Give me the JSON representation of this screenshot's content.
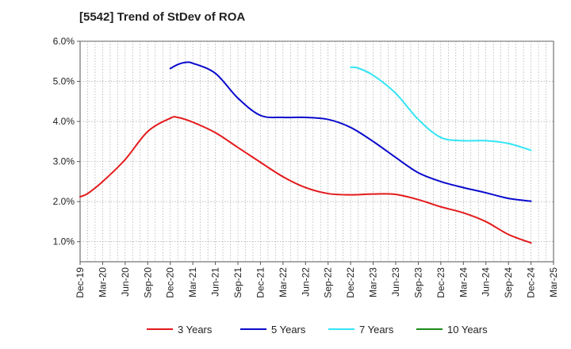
{
  "chart_data": {
    "type": "line",
    "title": "[5542]  Trend of StDev of ROA",
    "y_unit": "%",
    "ylim": [
      0.5,
      6.0
    ],
    "y_ticks": [
      1.0,
      2.0,
      3.0,
      4.0,
      5.0,
      6.0
    ],
    "y_tick_labels": [
      "1.0%",
      "2.0%",
      "3.0%",
      "4.0%",
      "5.0%",
      "6.0%"
    ],
    "x_ticks": [
      "Dec-19",
      "Mar-20",
      "Jun-20",
      "Sep-20",
      "Dec-20",
      "Mar-21",
      "Jun-21",
      "Sep-21",
      "Dec-21",
      "Mar-22",
      "Jun-22",
      "Sep-22",
      "Dec-22",
      "Mar-23",
      "Jun-23",
      "Sep-23",
      "Dec-23",
      "Mar-24",
      "Jun-24",
      "Sep-24",
      "Dec-24",
      "Mar-25"
    ],
    "grid": true,
    "legend_position": "bottom",
    "series": [
      {
        "name": "3 Years",
        "color": "#e41a1c",
        "points": [
          [
            "Dec-19",
            2.12
          ],
          [
            "Jan-20",
            2.2
          ],
          [
            "Mar-20",
            2.5
          ],
          [
            "Jun-20",
            3.05
          ],
          [
            "Sep-20",
            3.75
          ],
          [
            "Dec-20",
            4.08
          ],
          [
            "Jan-21",
            4.1
          ],
          [
            "Mar-21",
            3.98
          ],
          [
            "Jun-21",
            3.72
          ],
          [
            "Sep-21",
            3.35
          ],
          [
            "Dec-21",
            2.98
          ],
          [
            "Mar-22",
            2.62
          ],
          [
            "Jun-22",
            2.35
          ],
          [
            "Sep-22",
            2.2
          ],
          [
            "Dec-22",
            2.17
          ],
          [
            "Mar-23",
            2.19
          ],
          [
            "Jun-23",
            2.18
          ],
          [
            "Sep-23",
            2.05
          ],
          [
            "Dec-23",
            1.87
          ],
          [
            "Mar-24",
            1.72
          ],
          [
            "Jun-24",
            1.5
          ],
          [
            "Sep-24",
            1.18
          ],
          [
            "Dec-24",
            0.97
          ]
        ]
      },
      {
        "name": "5 Years",
        "color": "#0a0acd",
        "points": [
          [
            "Dec-20",
            5.32
          ],
          [
            "Jan-21",
            5.42
          ],
          [
            "Feb-21",
            5.47
          ],
          [
            "Mar-21",
            5.45
          ],
          [
            "Jun-21",
            5.2
          ],
          [
            "Sep-21",
            4.58
          ],
          [
            "Dec-21",
            4.15
          ],
          [
            "Mar-22",
            4.1
          ],
          [
            "Jun-22",
            4.1
          ],
          [
            "Sep-22",
            4.05
          ],
          [
            "Dec-22",
            3.85
          ],
          [
            "Mar-23",
            3.5
          ],
          [
            "Jun-23",
            3.1
          ],
          [
            "Sep-23",
            2.72
          ],
          [
            "Dec-23",
            2.5
          ],
          [
            "Mar-24",
            2.35
          ],
          [
            "Jun-24",
            2.22
          ],
          [
            "Sep-24",
            2.08
          ],
          [
            "Dec-24",
            2.01
          ]
        ]
      },
      {
        "name": "7 Years",
        "color": "#33e5f5",
        "points": [
          [
            "Dec-22",
            5.35
          ],
          [
            "Jan-23",
            5.33
          ],
          [
            "Mar-23",
            5.15
          ],
          [
            "Jun-23",
            4.7
          ],
          [
            "Sep-23",
            4.05
          ],
          [
            "Dec-23",
            3.6
          ],
          [
            "Mar-24",
            3.52
          ],
          [
            "Jun-24",
            3.52
          ],
          [
            "Sep-24",
            3.45
          ],
          [
            "Dec-24",
            3.28
          ]
        ]
      },
      {
        "name": "10 Years",
        "color": "#1a8a1a",
        "points": []
      }
    ]
  }
}
